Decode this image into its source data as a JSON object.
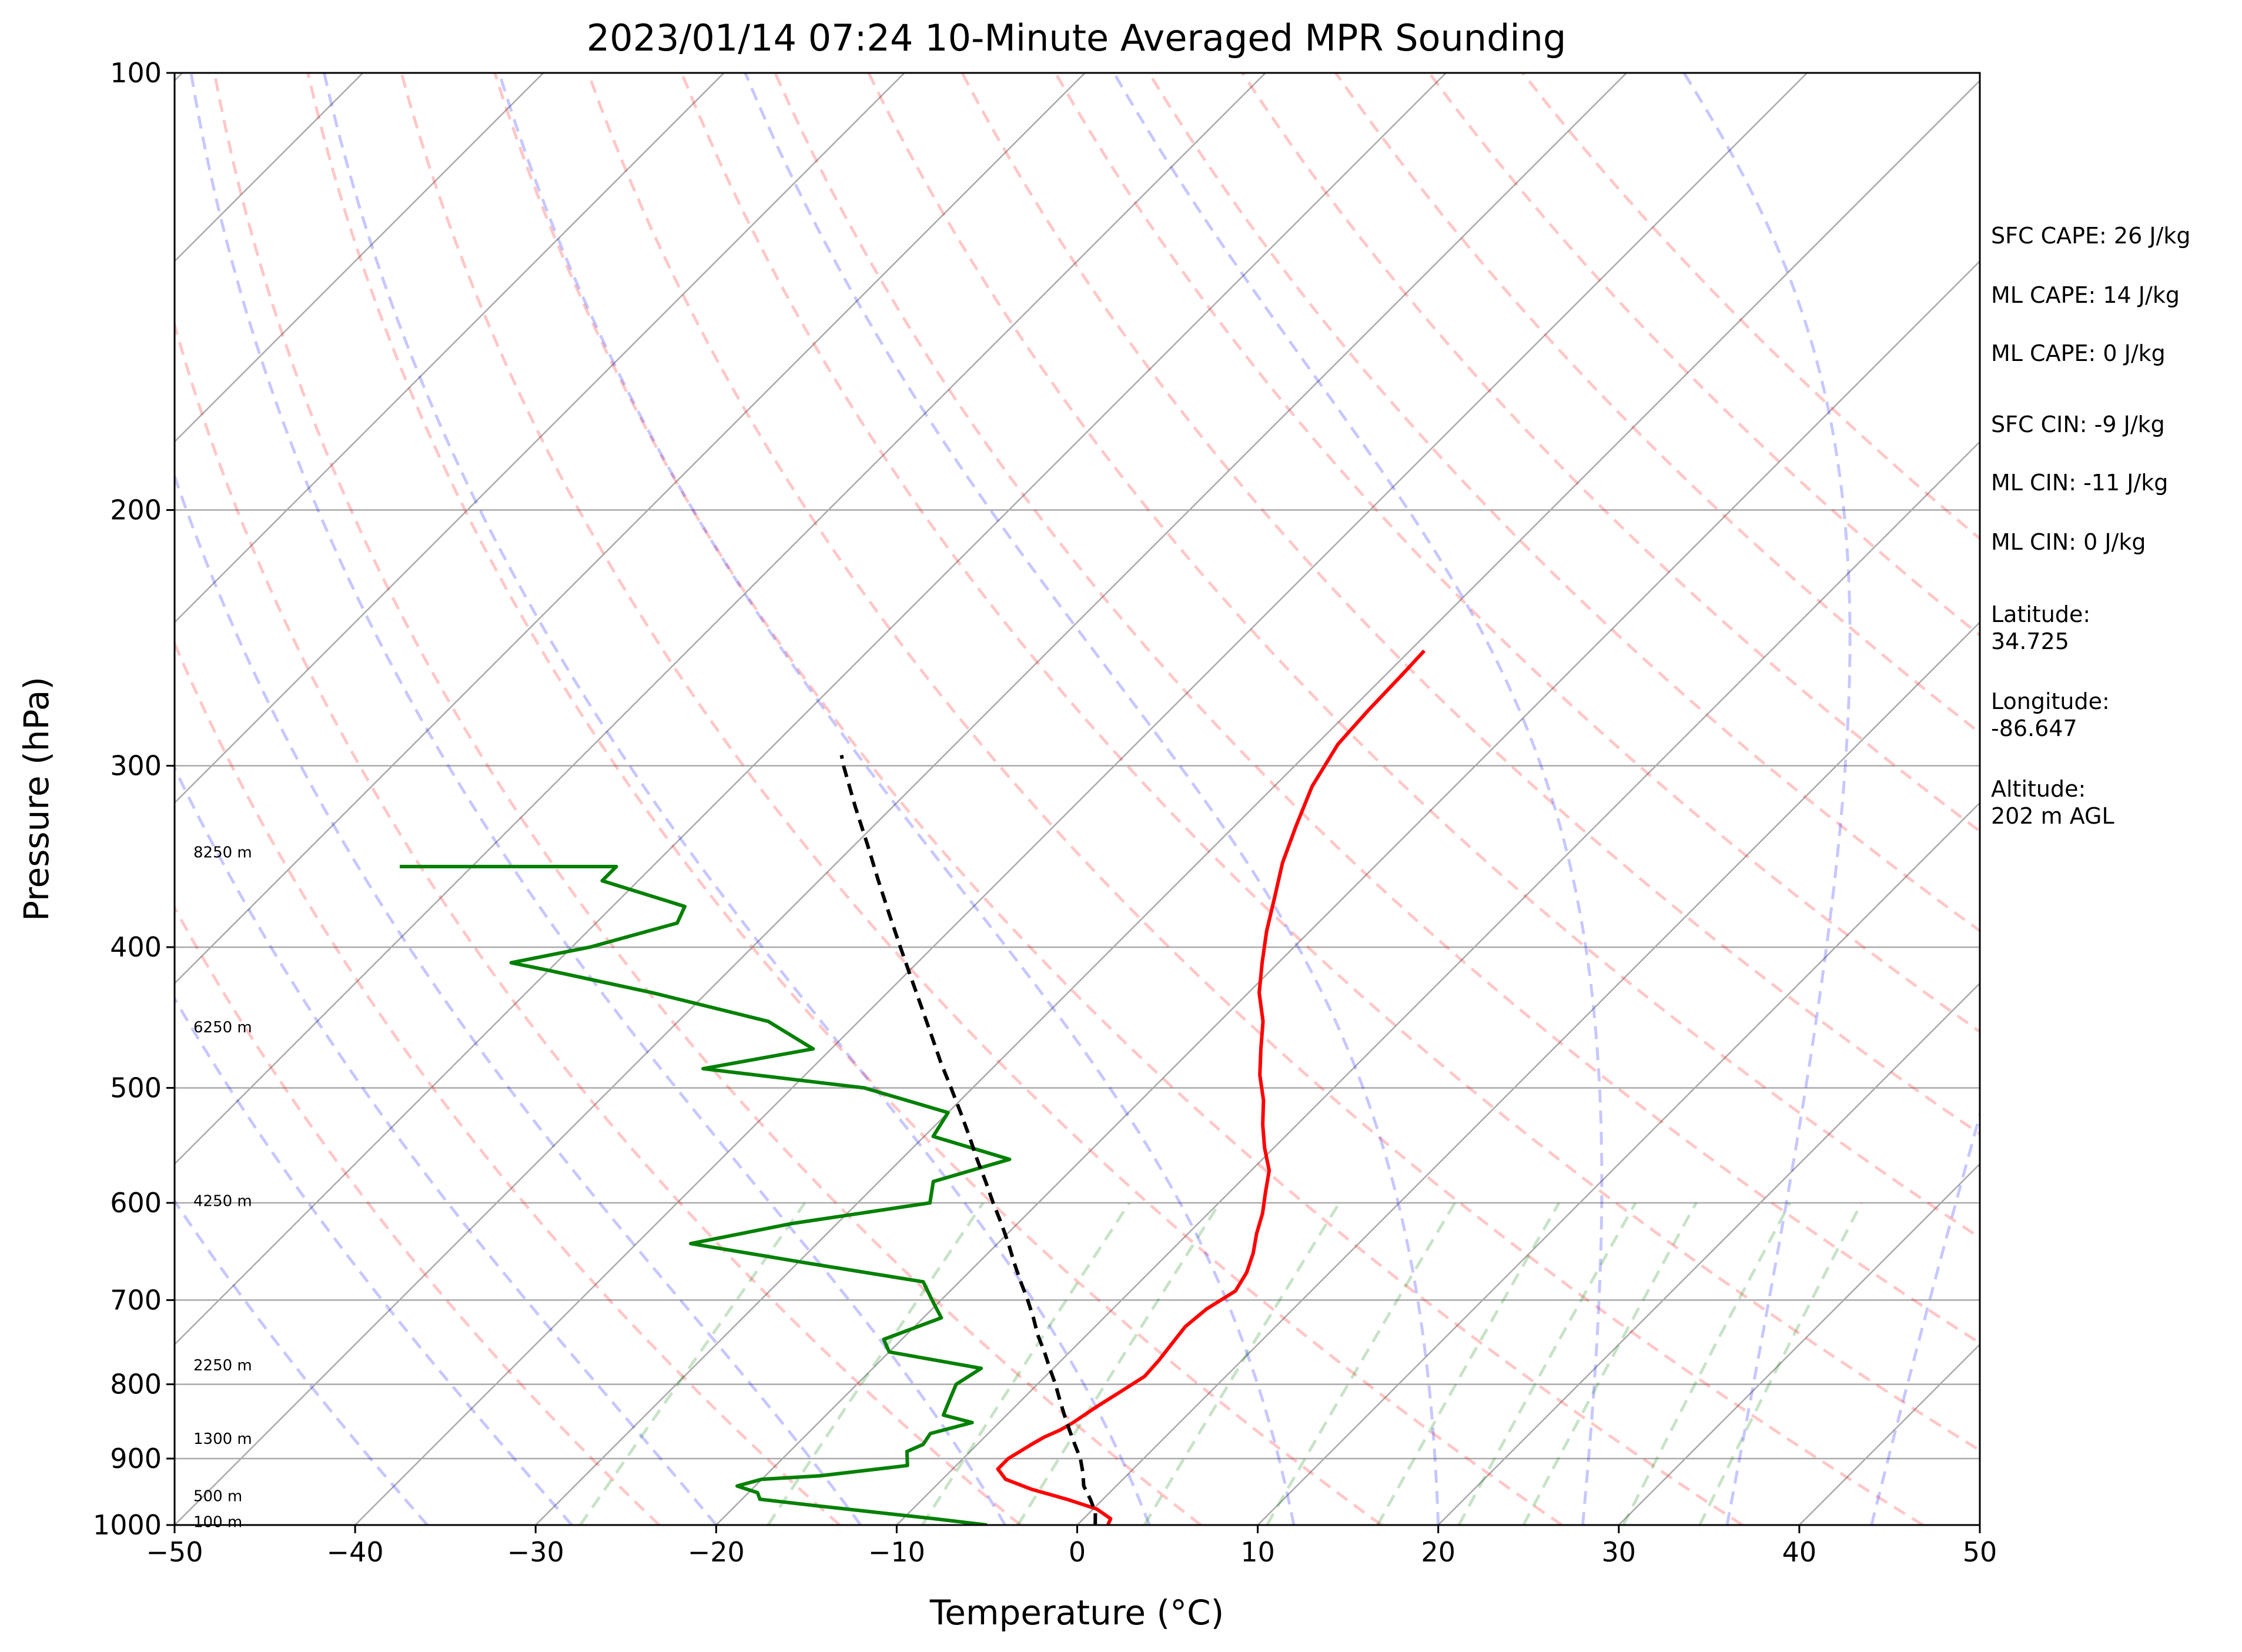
{
  "chart_data": {
    "type": "skewt",
    "title": "2023/01/14 07:24 10-Minute Averaged MPR Sounding",
    "xlabel": "Temperature (°C)",
    "ylabel": "Pressure (hPa)",
    "xlim": [
      -50,
      50
    ],
    "ylim": [
      1000,
      100
    ],
    "y_scale": "log",
    "x_ticks": [
      -50,
      -40,
      -30,
      -20,
      -10,
      0,
      10,
      20,
      30,
      40,
      50
    ],
    "x_tick_labels": [
      "−50",
      "−40",
      "−30",
      "−20",
      "−10",
      "0",
      "10",
      "20",
      "30",
      "40",
      "50"
    ],
    "y_ticks": [
      1000,
      900,
      800,
      700,
      600,
      500,
      400,
      300,
      200,
      100
    ],
    "y_tick_labels": [
      "1000",
      "900",
      "800",
      "700",
      "600",
      "500",
      "400",
      "300",
      "200",
      "100"
    ],
    "grid": true,
    "skew_isotherms_deg_c": [
      -160,
      -150,
      -140,
      -130,
      -120,
      -110,
      -100,
      -90,
      -80,
      -70,
      -60,
      -50,
      -40,
      -30,
      -20,
      -10,
      0,
      10,
      20,
      30,
      40,
      50
    ],
    "dry_adiabats_theta_k": [
      250,
      260,
      270,
      280,
      290,
      300,
      310,
      320,
      330,
      340,
      350,
      360,
      370,
      380,
      390,
      400,
      410,
      420
    ],
    "moist_adiabats_start_deg_c": [
      -36,
      -28,
      -20,
      -12,
      -4,
      4,
      12,
      20,
      28,
      36,
      44
    ],
    "mixing_ratio_lines_g_per_kg": [
      0.4,
      1,
      2,
      3,
      5,
      8,
      12,
      16,
      20,
      28,
      36
    ],
    "series": [
      {
        "name": "Temperature",
        "color": "#ff0000",
        "points": [
          [
            1000,
            1.7
          ],
          [
            990,
            1.5
          ],
          [
            975,
            0.2
          ],
          [
            960,
            -2.0
          ],
          [
            945,
            -4.5
          ],
          [
            930,
            -6.5
          ],
          [
            915,
            -7.5
          ],
          [
            900,
            -7.5
          ],
          [
            880,
            -7.0
          ],
          [
            870,
            -6.7
          ],
          [
            860,
            -6.2
          ],
          [
            850,
            -5.9
          ],
          [
            830,
            -5.5
          ],
          [
            810,
            -5.0
          ],
          [
            790,
            -4.5
          ],
          [
            770,
            -4.6
          ],
          [
            750,
            -4.8
          ],
          [
            730,
            -5.0
          ],
          [
            710,
            -4.8
          ],
          [
            690,
            -4.2
          ],
          [
            670,
            -4.6
          ],
          [
            650,
            -5.3
          ],
          [
            630,
            -6.2
          ],
          [
            610,
            -7.0
          ],
          [
            590,
            -8.0
          ],
          [
            570,
            -9.0
          ],
          [
            550,
            -10.5
          ],
          [
            530,
            -11.9
          ],
          [
            510,
            -13.2
          ],
          [
            490,
            -14.8
          ],
          [
            470,
            -16.2
          ],
          [
            450,
            -17.6
          ],
          [
            430,
            -19.4
          ],
          [
            410,
            -20.9
          ],
          [
            390,
            -22.4
          ],
          [
            370,
            -23.8
          ],
          [
            350,
            -25.3
          ],
          [
            330,
            -26.6
          ],
          [
            310,
            -27.9
          ],
          [
            290,
            -28.8
          ],
          [
            275,
            -29.0
          ],
          [
            260,
            -29.1
          ],
          [
            250,
            -29.2
          ]
        ]
      },
      {
        "name": "Dewpoint",
        "color": "#008000",
        "points": [
          [
            1000,
            -5.0
          ],
          [
            990,
            -8.3
          ],
          [
            970,
            -15.5
          ],
          [
            960,
            -19.0
          ],
          [
            950,
            -19.5
          ],
          [
            940,
            -21.0
          ],
          [
            930,
            -20.0
          ],
          [
            925,
            -17.0
          ],
          [
            910,
            -12.7
          ],
          [
            890,
            -13.5
          ],
          [
            880,
            -13.0
          ],
          [
            865,
            -13.2
          ],
          [
            850,
            -11.5
          ],
          [
            840,
            -13.5
          ],
          [
            820,
            -14.0
          ],
          [
            800,
            -14.5
          ],
          [
            780,
            -14.0
          ],
          [
            760,
            -20.0
          ],
          [
            745,
            -21.0
          ],
          [
            720,
            -19.0
          ],
          [
            700,
            -20.5
          ],
          [
            680,
            -22.0
          ],
          [
            660,
            -29.5
          ],
          [
            640,
            -37.0
          ],
          [
            620,
            -32.5
          ],
          [
            600,
            -26.0
          ],
          [
            580,
            -27.0
          ],
          [
            560,
            -24.0
          ],
          [
            540,
            -29.5
          ],
          [
            520,
            -30.0
          ],
          [
            500,
            -36.0
          ],
          [
            485,
            -46.0
          ],
          [
            470,
            -41.0
          ],
          [
            450,
            -45.0
          ],
          [
            430,
            -53.0
          ],
          [
            415,
            -60.0
          ],
          [
            410,
            -62.5
          ],
          [
            400,
            -59.0
          ],
          [
            385,
            -55.5
          ],
          [
            375,
            -56.0
          ],
          [
            360,
            -62.0
          ],
          [
            352,
            -62.0
          ],
          [
            352,
            -74.0
          ]
        ]
      },
      {
        "name": "Parcel profile",
        "color": "#000000",
        "style": "dashed",
        "points": [
          [
            1000,
            1.0
          ],
          [
            980,
            0.3
          ],
          [
            960,
            -0.7
          ],
          [
            940,
            -1.8
          ],
          [
            920,
            -2.6
          ],
          [
            900,
            -3.5
          ],
          [
            880,
            -4.6
          ],
          [
            860,
            -5.7
          ],
          [
            840,
            -6.8
          ],
          [
            820,
            -7.9
          ],
          [
            800,
            -9.0
          ],
          [
            780,
            -10.2
          ],
          [
            760,
            -11.4
          ],
          [
            740,
            -12.7
          ],
          [
            720,
            -13.9
          ],
          [
            700,
            -15.2
          ],
          [
            680,
            -16.6
          ],
          [
            660,
            -18.0
          ],
          [
            640,
            -19.4
          ],
          [
            620,
            -20.9
          ],
          [
            600,
            -22.5
          ],
          [
            580,
            -24.1
          ],
          [
            560,
            -25.8
          ],
          [
            540,
            -27.5
          ],
          [
            520,
            -29.3
          ],
          [
            500,
            -31.2
          ],
          [
            480,
            -33.2
          ],
          [
            460,
            -35.2
          ],
          [
            440,
            -37.3
          ],
          [
            420,
            -39.5
          ],
          [
            400,
            -41.8
          ],
          [
            380,
            -44.2
          ],
          [
            360,
            -46.7
          ],
          [
            340,
            -49.3
          ],
          [
            320,
            -52.1
          ],
          [
            300,
            -55.0
          ],
          [
            295,
            -55.7
          ]
        ]
      }
    ],
    "height_labels": [
      {
        "text": "8250 m",
        "pressure": 344
      },
      {
        "text": "6250 m",
        "pressure": 454
      },
      {
        "text": "4250 m",
        "pressure": 598
      },
      {
        "text": "2250 m",
        "pressure": 776
      },
      {
        "text": "1300 m",
        "pressure": 872
      },
      {
        "text": "500 m",
        "pressure": 955
      },
      {
        "text": "100 m",
        "pressure": 995
      }
    ],
    "colors": {
      "isotherm": "#a9a9a9",
      "grid": "#a9a9a9",
      "dry_adiabat": "#ff0000",
      "moist_adiabat": "#0000ff",
      "mixing_ratio": "#008000"
    }
  },
  "info_panel": {
    "sfc_cape": "SFC CAPE: 26 J/kg",
    "ml_cape_1": "ML CAPE: 14 J/kg",
    "ml_cape_2": "ML CAPE: 0 J/kg",
    "sfc_cin": "SFC CIN: -9 J/kg",
    "ml_cin_1": "ML CIN: -11 J/kg",
    "ml_cin_2": "ML CIN: 0 J/kg",
    "latitude_label": "Latitude:",
    "latitude_value": "34.725",
    "longitude_label": "Longitude:",
    "longitude_value": "-86.647",
    "altitude_label": "Altitude:",
    "altitude_value": "202 m AGL"
  }
}
